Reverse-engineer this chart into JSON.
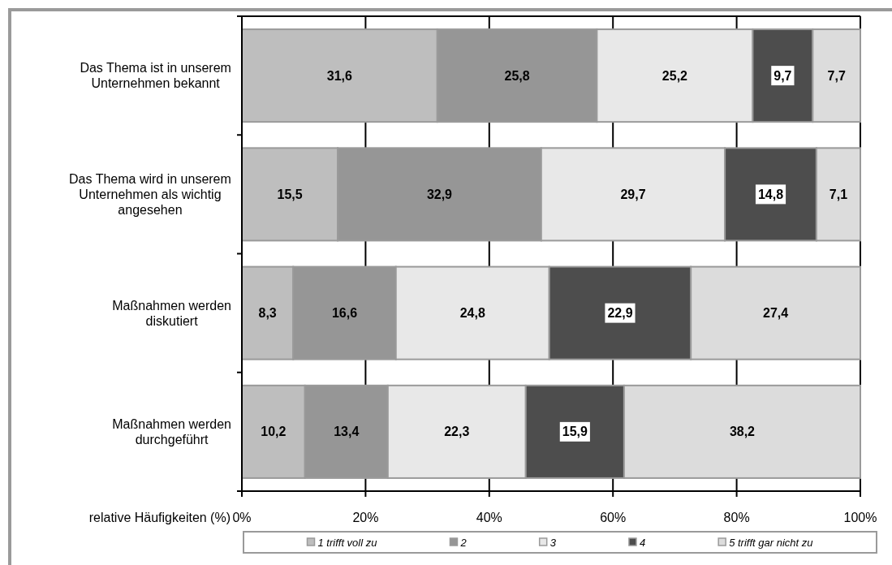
{
  "chart_data": {
    "type": "bar",
    "orientation": "horizontal",
    "stacked": true,
    "categories": [
      "Das Thema ist in unserem\nUnternehmen bekannt",
      "Das Thema wird in unserem\nUnternehmen als wichtig\nangesehen",
      "Maßnahmen werden\ndiskutiert",
      "Maßnahmen werden\ndurchgeführt"
    ],
    "series": [
      {
        "name": "1 trifft voll zu",
        "color": "#bebebe",
        "values": [
          31.6,
          15.5,
          8.3,
          10.2
        ],
        "value_labels": [
          "31,6",
          "15,5",
          "8,3",
          "10,2"
        ]
      },
      {
        "name": "2",
        "color": "#969696",
        "values": [
          25.8,
          32.9,
          16.6,
          13.4
        ],
        "value_labels": [
          "25,8",
          "32,9",
          "16,6",
          "13,4"
        ]
      },
      {
        "name": "3",
        "color": "#e8e8e8",
        "values": [
          25.2,
          29.7,
          24.8,
          22.3
        ],
        "value_labels": [
          "25,2",
          "29,7",
          "24,8",
          "22,3"
        ]
      },
      {
        "name": "4",
        "color": "#4d4d4d",
        "values": [
          9.7,
          14.8,
          22.9,
          15.9
        ],
        "value_labels": [
          "9,7",
          "14,8",
          "22,9",
          "15,9"
        ]
      },
      {
        "name": "5 trifft gar nicht zu",
        "color": "#dcdcdc",
        "values": [
          7.7,
          7.1,
          27.4,
          38.2
        ],
        "value_labels": [
          "7,7",
          "7,1",
          "27,4",
          "38,2"
        ]
      }
    ],
    "xlim": [
      0,
      100
    ],
    "xticks": [
      {
        "value": 0,
        "label": "0%"
      },
      {
        "value": 20,
        "label": "20%"
      },
      {
        "value": 40,
        "label": "40%"
      },
      {
        "value": 60,
        "label": "60%"
      },
      {
        "value": 80,
        "label": "80%"
      },
      {
        "value": 100,
        "label": "100%"
      }
    ],
    "xlabel": "relative Häufigkeiten (%)",
    "grid": "x",
    "legend": "bottom"
  }
}
